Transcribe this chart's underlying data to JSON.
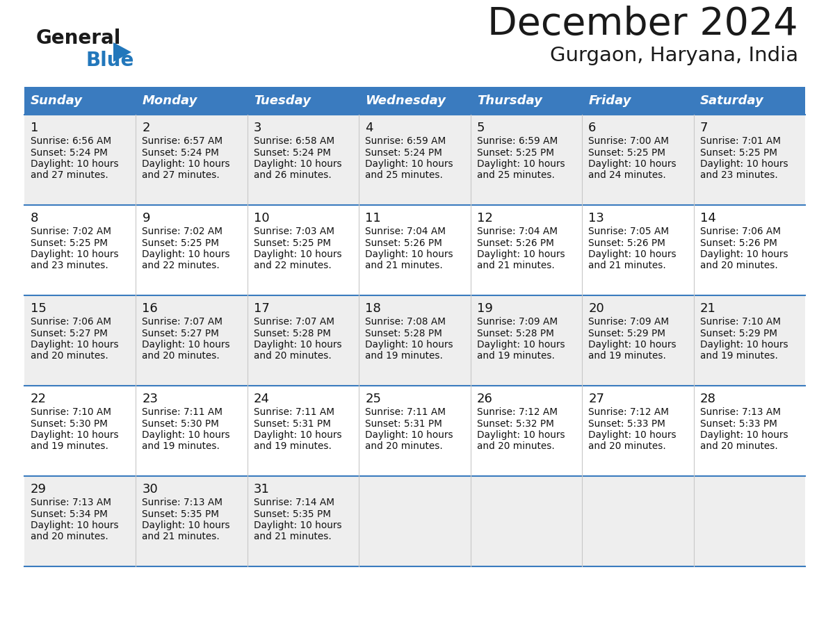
{
  "title": "December 2024",
  "subtitle": "Gurgaon, Haryana, India",
  "header_bg": "#3a7bbf",
  "header_text": "#ffffff",
  "day_names": [
    "Sunday",
    "Monday",
    "Tuesday",
    "Wednesday",
    "Thursday",
    "Friday",
    "Saturday"
  ],
  "row_bg": [
    "#eeeeee",
    "#ffffff",
    "#eeeeee",
    "#ffffff",
    "#eeeeee"
  ],
  "border_color": "#3a7bbf",
  "text_color": "#111111",
  "general_black": "#1a1a1a",
  "blue_color": "#2277bb",
  "days": [
    {
      "day": 1,
      "col": 0,
      "row": 0,
      "sunrise": "6:56 AM",
      "sunset": "5:24 PM",
      "daylight_mins": "27"
    },
    {
      "day": 2,
      "col": 1,
      "row": 0,
      "sunrise": "6:57 AM",
      "sunset": "5:24 PM",
      "daylight_mins": "27"
    },
    {
      "day": 3,
      "col": 2,
      "row": 0,
      "sunrise": "6:58 AM",
      "sunset": "5:24 PM",
      "daylight_mins": "26"
    },
    {
      "day": 4,
      "col": 3,
      "row": 0,
      "sunrise": "6:59 AM",
      "sunset": "5:24 PM",
      "daylight_mins": "25"
    },
    {
      "day": 5,
      "col": 4,
      "row": 0,
      "sunrise": "6:59 AM",
      "sunset": "5:25 PM",
      "daylight_mins": "25"
    },
    {
      "day": 6,
      "col": 5,
      "row": 0,
      "sunrise": "7:00 AM",
      "sunset": "5:25 PM",
      "daylight_mins": "24"
    },
    {
      "day": 7,
      "col": 6,
      "row": 0,
      "sunrise": "7:01 AM",
      "sunset": "5:25 PM",
      "daylight_mins": "23"
    },
    {
      "day": 8,
      "col": 0,
      "row": 1,
      "sunrise": "7:02 AM",
      "sunset": "5:25 PM",
      "daylight_mins": "23"
    },
    {
      "day": 9,
      "col": 1,
      "row": 1,
      "sunrise": "7:02 AM",
      "sunset": "5:25 PM",
      "daylight_mins": "22"
    },
    {
      "day": 10,
      "col": 2,
      "row": 1,
      "sunrise": "7:03 AM",
      "sunset": "5:25 PM",
      "daylight_mins": "22"
    },
    {
      "day": 11,
      "col": 3,
      "row": 1,
      "sunrise": "7:04 AM",
      "sunset": "5:26 PM",
      "daylight_mins": "21"
    },
    {
      "day": 12,
      "col": 4,
      "row": 1,
      "sunrise": "7:04 AM",
      "sunset": "5:26 PM",
      "daylight_mins": "21"
    },
    {
      "day": 13,
      "col": 5,
      "row": 1,
      "sunrise": "7:05 AM",
      "sunset": "5:26 PM",
      "daylight_mins": "21"
    },
    {
      "day": 14,
      "col": 6,
      "row": 1,
      "sunrise": "7:06 AM",
      "sunset": "5:26 PM",
      "daylight_mins": "20"
    },
    {
      "day": 15,
      "col": 0,
      "row": 2,
      "sunrise": "7:06 AM",
      "sunset": "5:27 PM",
      "daylight_mins": "20"
    },
    {
      "day": 16,
      "col": 1,
      "row": 2,
      "sunrise": "7:07 AM",
      "sunset": "5:27 PM",
      "daylight_mins": "20"
    },
    {
      "day": 17,
      "col": 2,
      "row": 2,
      "sunrise": "7:07 AM",
      "sunset": "5:28 PM",
      "daylight_mins": "20"
    },
    {
      "day": 18,
      "col": 3,
      "row": 2,
      "sunrise": "7:08 AM",
      "sunset": "5:28 PM",
      "daylight_mins": "19"
    },
    {
      "day": 19,
      "col": 4,
      "row": 2,
      "sunrise": "7:09 AM",
      "sunset": "5:28 PM",
      "daylight_mins": "19"
    },
    {
      "day": 20,
      "col": 5,
      "row": 2,
      "sunrise": "7:09 AM",
      "sunset": "5:29 PM",
      "daylight_mins": "19"
    },
    {
      "day": 21,
      "col": 6,
      "row": 2,
      "sunrise": "7:10 AM",
      "sunset": "5:29 PM",
      "daylight_mins": "19"
    },
    {
      "day": 22,
      "col": 0,
      "row": 3,
      "sunrise": "7:10 AM",
      "sunset": "5:30 PM",
      "daylight_mins": "19"
    },
    {
      "day": 23,
      "col": 1,
      "row": 3,
      "sunrise": "7:11 AM",
      "sunset": "5:30 PM",
      "daylight_mins": "19"
    },
    {
      "day": 24,
      "col": 2,
      "row": 3,
      "sunrise": "7:11 AM",
      "sunset": "5:31 PM",
      "daylight_mins": "19"
    },
    {
      "day": 25,
      "col": 3,
      "row": 3,
      "sunrise": "7:11 AM",
      "sunset": "5:31 PM",
      "daylight_mins": "20"
    },
    {
      "day": 26,
      "col": 4,
      "row": 3,
      "sunrise": "7:12 AM",
      "sunset": "5:32 PM",
      "daylight_mins": "20"
    },
    {
      "day": 27,
      "col": 5,
      "row": 3,
      "sunrise": "7:12 AM",
      "sunset": "5:33 PM",
      "daylight_mins": "20"
    },
    {
      "day": 28,
      "col": 6,
      "row": 3,
      "sunrise": "7:13 AM",
      "sunset": "5:33 PM",
      "daylight_mins": "20"
    },
    {
      "day": 29,
      "col": 0,
      "row": 4,
      "sunrise": "7:13 AM",
      "sunset": "5:34 PM",
      "daylight_mins": "20"
    },
    {
      "day": 30,
      "col": 1,
      "row": 4,
      "sunrise": "7:13 AM",
      "sunset": "5:35 PM",
      "daylight_mins": "21"
    },
    {
      "day": 31,
      "col": 2,
      "row": 4,
      "sunrise": "7:14 AM",
      "sunset": "5:35 PM",
      "daylight_mins": "21"
    }
  ]
}
